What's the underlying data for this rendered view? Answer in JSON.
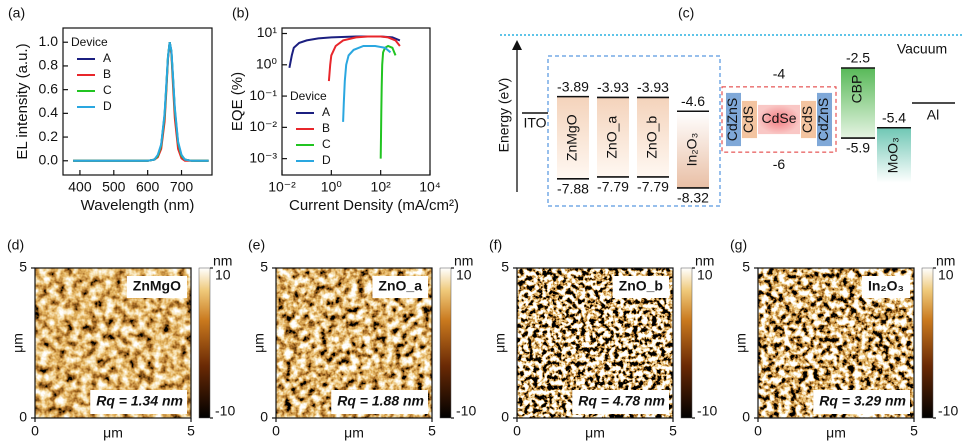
{
  "chart_data": [
    {
      "type": "line",
      "panel": "(a)",
      "xlabel": "Wavelength (nm)",
      "ylabel": "EL intensity (a.u.)",
      "legend_title": "Device",
      "legend_loc": "upper left",
      "x": [
        380,
        500,
        600,
        620,
        630,
        640,
        650,
        655,
        660,
        665,
        670,
        675,
        680,
        690,
        700,
        710,
        730,
        780
      ],
      "series": [
        {
          "name": "A",
          "color": "#1b1f80",
          "values": [
            0,
            0,
            0,
            0.01,
            0.04,
            0.13,
            0.38,
            0.62,
            0.87,
            1.0,
            0.92,
            0.68,
            0.42,
            0.14,
            0.04,
            0.01,
            0,
            0
          ]
        },
        {
          "name": "B",
          "color": "#e8262b",
          "values": [
            0,
            0,
            0,
            0.01,
            0.03,
            0.1,
            0.33,
            0.58,
            0.86,
            1.0,
            0.9,
            0.62,
            0.36,
            0.1,
            0.02,
            0,
            0,
            0
          ]
        },
        {
          "name": "C",
          "color": "#21c421",
          "values": [
            0,
            0,
            0,
            0.01,
            0.04,
            0.13,
            0.38,
            0.62,
            0.88,
            1.0,
            0.92,
            0.68,
            0.43,
            0.15,
            0.04,
            0.01,
            0,
            0
          ]
        },
        {
          "name": "D",
          "color": "#2aa7e0",
          "values": [
            0,
            0,
            0,
            0.01,
            0.05,
            0.14,
            0.4,
            0.64,
            0.88,
            1.0,
            0.93,
            0.7,
            0.45,
            0.16,
            0.05,
            0.01,
            0,
            0
          ]
        }
      ],
      "xlim": [
        350,
        790
      ],
      "xticks": [
        400,
        500,
        600,
        700
      ],
      "ylim": [
        -0.12,
        1.12
      ],
      "yticks": [
        {
          "value": 0,
          "label": "0.0"
        },
        0.2,
        0.4,
        0.6,
        0.8,
        {
          "value": 1,
          "label": "1.0"
        }
      ]
    },
    {
      "type": "line",
      "log": true,
      "panel": "(b)",
      "xlabel": "Current Density (mA/cm²)",
      "ylabel": "EQE (%)",
      "legend_title": "Device",
      "legend_loc": "lower left",
      "series": [
        {
          "name": "A",
          "color": "#1b1f80",
          "x": [
            0.02,
            0.025,
            0.03,
            0.05,
            0.1,
            0.3,
            1,
            10,
            100,
            300,
            600
          ],
          "values": [
            0.8,
            2,
            3.5,
            5,
            6,
            7,
            7.5,
            8,
            8,
            7.5,
            6
          ]
        },
        {
          "name": "B",
          "color": "#e8262b",
          "x": [
            0.8,
            0.9,
            1,
            1.5,
            3,
            10,
            30,
            100,
            200,
            400,
            600
          ],
          "values": [
            0.3,
            1,
            2,
            4,
            6,
            7.5,
            8,
            8,
            7.5,
            6,
            4
          ]
        },
        {
          "name": "C",
          "color": "#21c421",
          "x": [
            100,
            103,
            106,
            110,
            115,
            125,
            150,
            200,
            300,
            400
          ],
          "values": [
            0.001,
            0.005,
            0.03,
            0.2,
            1,
            2.5,
            3.5,
            4,
            3.5,
            2
          ]
        },
        {
          "name": "D",
          "color": "#2aa7e0",
          "x": [
            3,
            3.2,
            3.5,
            4,
            5,
            8,
            20,
            60,
            150,
            250
          ],
          "values": [
            0.015,
            0.06,
            0.3,
            1,
            2,
            3,
            4,
            4,
            3.5,
            2.5
          ]
        }
      ],
      "xlim": [
        0.01,
        10000
      ],
      "xticks": [
        {
          "value": 0.01,
          "label": "10⁻²"
        },
        {
          "value": 1,
          "label": "10⁰"
        },
        {
          "value": 100,
          "label": "10²"
        },
        {
          "value": 10000,
          "label": "10⁴"
        }
      ],
      "ylim": [
        0.0003,
        15
      ],
      "yticks": [
        {
          "value": 0.001,
          "label": "10⁻³"
        },
        {
          "value": 0.01,
          "label": "10⁻²"
        },
        {
          "value": 0.1,
          "label": "10⁻¹"
        },
        {
          "value": 1,
          "label": "10⁰"
        },
        {
          "value": 10,
          "label": "10¹"
        }
      ]
    }
  ],
  "energy_diagram": {
    "panel": "(c)",
    "ylabel": "Energy (eV)",
    "vacuum": "Vacuum",
    "anode": "ITO",
    "cathode": "Al",
    "etl_layers": [
      {
        "name": "ZnMgO",
        "lumo": -3.89,
        "homo": -7.88
      },
      {
        "name": "ZnO_a",
        "lumo": -3.93,
        "homo": -7.79
      },
      {
        "name": "ZnO_b",
        "lumo": -3.93,
        "homo": -7.79
      },
      {
        "name": "In₂O₃",
        "lumo": -4.6,
        "homo": -8.32
      }
    ],
    "quantum_dot": {
      "layers": [
        "CdZnS",
        "CdS",
        "CdSe",
        "CdS",
        "CdZnS"
      ],
      "lumo": -4,
      "homo": -6
    },
    "htl_layers": [
      {
        "name": "CBP",
        "lumo": -2.5,
        "homo": -5.9
      },
      {
        "name": "MoO₃",
        "lumo": -5.4
      }
    ]
  },
  "afm": [
    {
      "panel": "(d)",
      "sample": "ZnMgO",
      "roughness": "Rq = 1.34 nm",
      "rq": 1.34,
      "axis_unit": "μm",
      "xlim": [
        0,
        5
      ],
      "ylim": [
        0,
        5
      ],
      "xticks": [
        0,
        5
      ],
      "yticks": [
        0,
        5
      ],
      "colorbar_unit": "nm",
      "zlim": [
        -10,
        10
      ],
      "zticks": [
        -10,
        10
      ]
    },
    {
      "panel": "(e)",
      "sample": "ZnO_a",
      "roughness": "Rq = 1.88 nm",
      "rq": 1.88,
      "axis_unit": "μm",
      "xlim": [
        0,
        5
      ],
      "ylim": [
        0,
        5
      ],
      "xticks": [
        0,
        5
      ],
      "yticks": [
        0,
        5
      ],
      "colorbar_unit": "nm",
      "zlim": [
        -10,
        10
      ],
      "zticks": [
        -10,
        10
      ]
    },
    {
      "panel": "(f)",
      "sample": "ZnO_b",
      "roughness": "Rq = 4.78 nm",
      "rq": 4.78,
      "axis_unit": "μm",
      "xlim": [
        0,
        5
      ],
      "ylim": [
        0,
        5
      ],
      "xticks": [
        0,
        5
      ],
      "yticks": [
        0,
        5
      ],
      "colorbar_unit": "nm",
      "zlim": [
        -10,
        10
      ],
      "zticks": [
        -10,
        10
      ]
    },
    {
      "panel": "(g)",
      "sample": "In₂O₃",
      "roughness": "Rq = 3.29 nm",
      "rq": 3.29,
      "axis_unit": "μm",
      "xlim": [
        0,
        5
      ],
      "ylim": [
        0,
        5
      ],
      "xticks": [
        0,
        5
      ],
      "yticks": [
        0,
        5
      ],
      "colorbar_unit": "nm",
      "zlim": [
        -10,
        10
      ],
      "zticks": [
        -10,
        10
      ]
    }
  ]
}
